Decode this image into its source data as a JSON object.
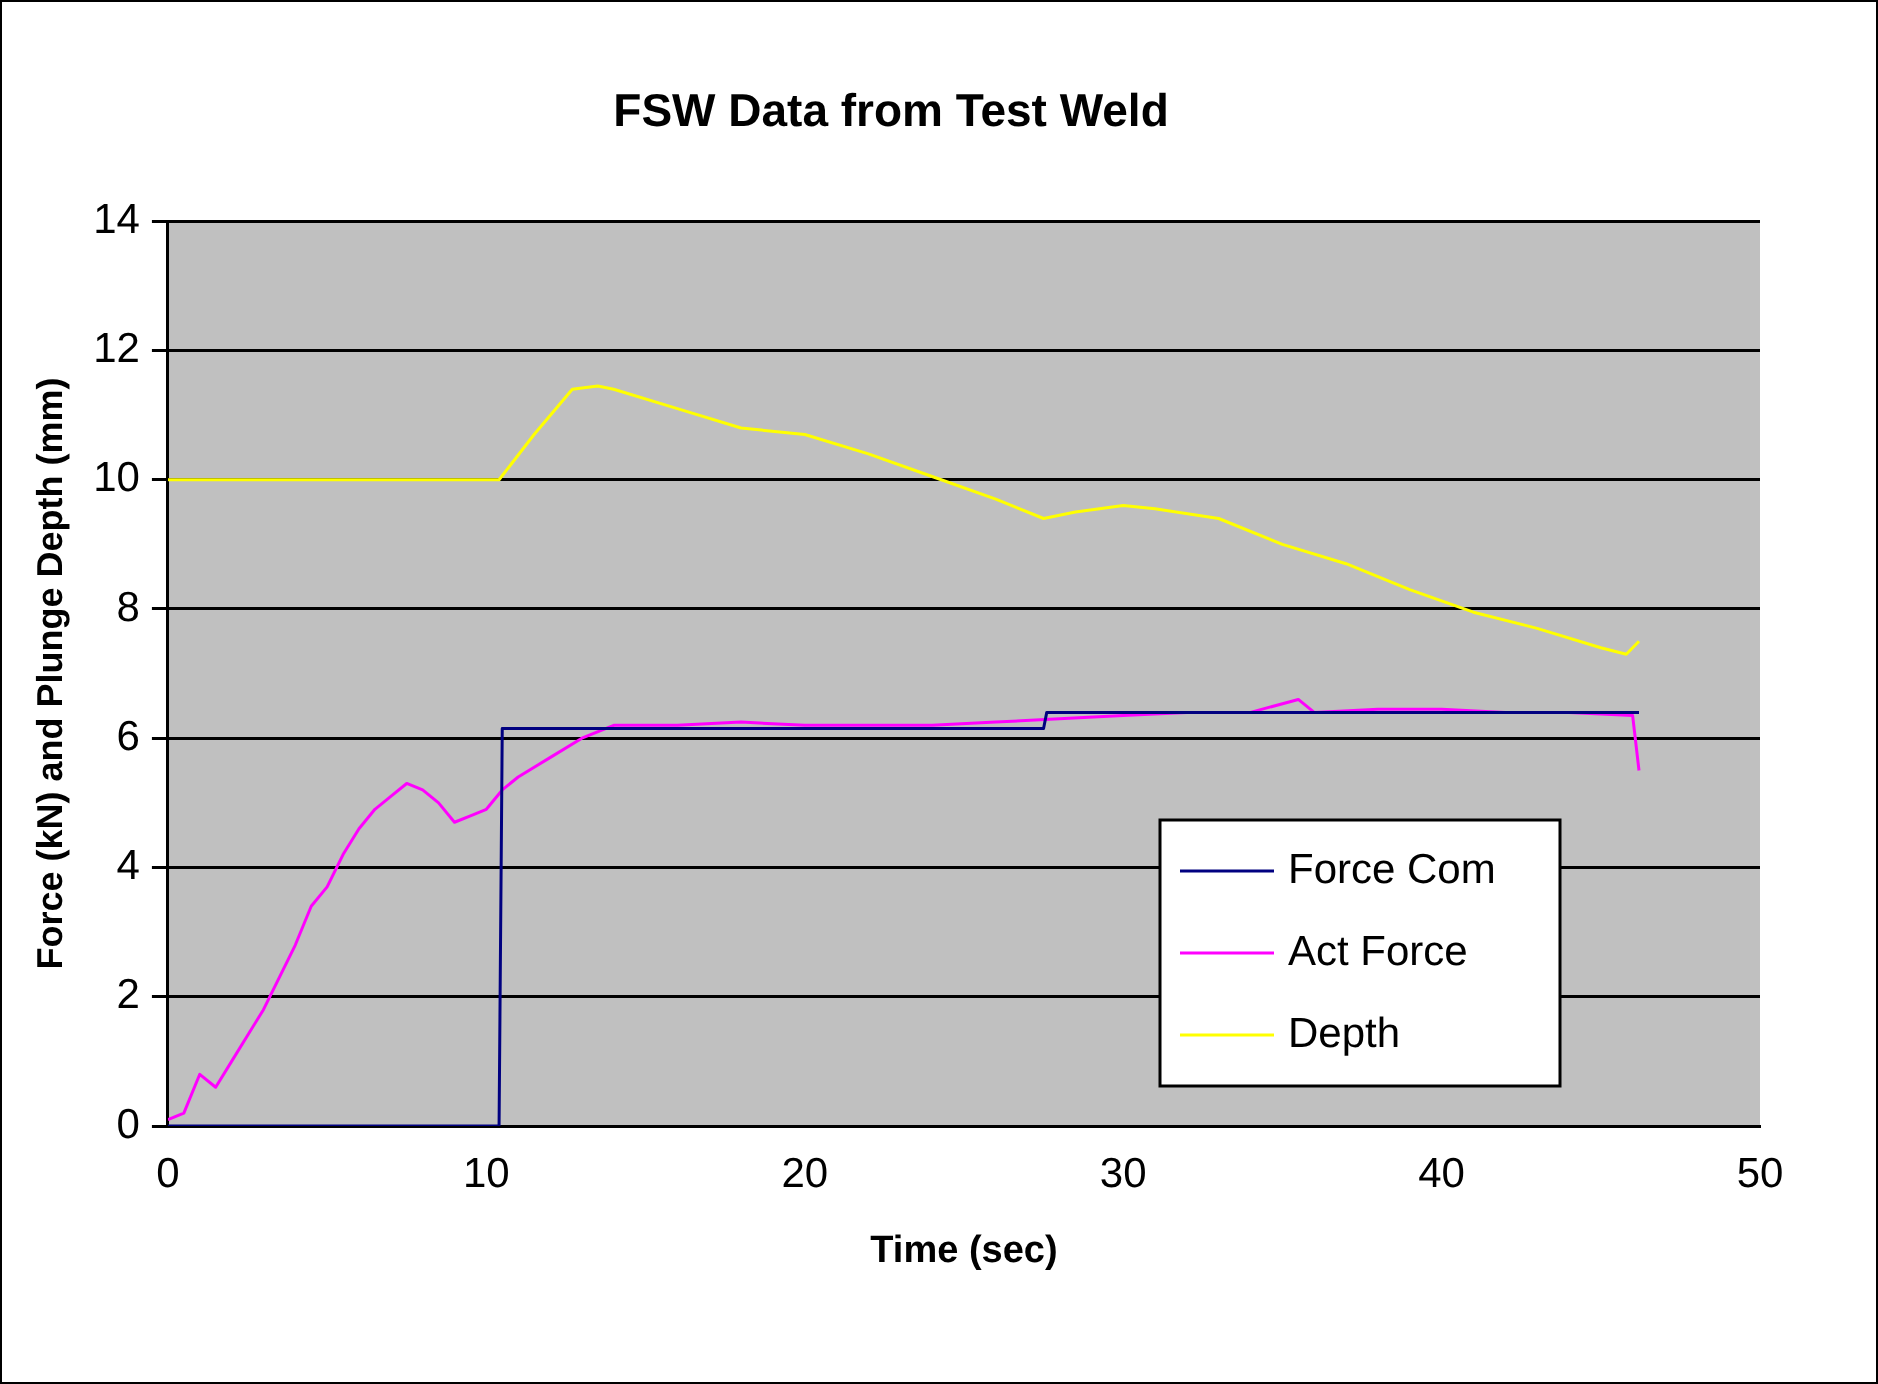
{
  "chart_data": {
    "type": "line",
    "title": "FSW Data from Test Weld",
    "xlabel": "Time (sec)",
    "ylabel": "Force (kN) and Plunge Depth (mm)",
    "xlim": [
      0,
      50
    ],
    "xticks": [
      0,
      10,
      20,
      30,
      40,
      50
    ],
    "ylim": [
      0,
      14
    ],
    "yticks": [
      0,
      2,
      4,
      6,
      8,
      10,
      12,
      14
    ],
    "grid": "y",
    "legend": "bottom right",
    "marker": "none",
    "line_style": "solid",
    "series": [
      {
        "name": "Force Com",
        "color": "#000080",
        "x": [
          0,
          10.4,
          10.5,
          27.5,
          27.6,
          46.2
        ],
        "values": [
          0,
          0,
          6.15,
          6.15,
          6.4,
          6.4
        ]
      },
      {
        "name": "Act Force",
        "color": "#ff00ff",
        "x": [
          0,
          0.5,
          1,
          1.5,
          2,
          2.5,
          3,
          3.5,
          4,
          4.5,
          5,
          5.5,
          6,
          6.5,
          7,
          7.5,
          8,
          8.5,
          9,
          9.5,
          10,
          10.5,
          11,
          12,
          13,
          14,
          16,
          18,
          20,
          22,
          24,
          26,
          28,
          30,
          32,
          34,
          35.5,
          36,
          38,
          40,
          42,
          44,
          46,
          46.2
        ],
        "values": [
          0.1,
          0.2,
          0.8,
          0.6,
          1,
          1.4,
          1.8,
          2.3,
          2.8,
          3.4,
          3.7,
          4.2,
          4.6,
          4.9,
          5.1,
          5.3,
          5.2,
          5,
          4.7,
          4.8,
          4.9,
          5.2,
          5.4,
          5.7,
          6,
          6.2,
          6.2,
          6.25,
          6.2,
          6.2,
          6.2,
          6.25,
          6.3,
          6.35,
          6.4,
          6.4,
          6.6,
          6.4,
          6.45,
          6.45,
          6.4,
          6.4,
          6.35,
          5.5
        ]
      },
      {
        "name": "Depth",
        "color": "#ffff00",
        "x": [
          0,
          10.4,
          11.5,
          12.7,
          13.5,
          14,
          16,
          18,
          20,
          22,
          24,
          26,
          27.5,
          28.5,
          30,
          31,
          33,
          35,
          37,
          39,
          41,
          43,
          45,
          45.8,
          46.2
        ],
        "values": [
          10,
          10,
          10.7,
          11.4,
          11.45,
          11.4,
          11.1,
          10.8,
          10.7,
          10.4,
          10.05,
          9.7,
          9.4,
          9.5,
          9.6,
          9.55,
          9.4,
          9,
          8.7,
          8.3,
          7.95,
          7.7,
          7.4,
          7.3,
          7.5
        ]
      }
    ]
  }
}
